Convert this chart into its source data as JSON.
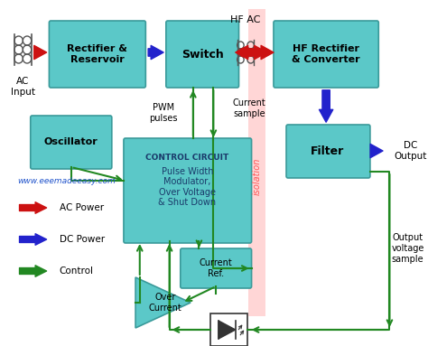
{
  "background_color": "#ffffff",
  "box_color": "#5bc8c8",
  "box_edge_color": "#3a9a9a",
  "control_text_color": "#1a3a6a",
  "website": "www.eeemadeeasy.com",
  "website_color": "#2255cc",
  "isolation_color": "#ffcccc",
  "isolation_text_color": "#ff5555",
  "ac_arrow_color": "#cc1111",
  "dc_arrow_color": "#2222cc",
  "control_arrow_color": "#228822",
  "legend": [
    {
      "label": "AC Power",
      "color": "#cc1111"
    },
    {
      "label": "DC Power",
      "color": "#2222cc"
    },
    {
      "label": "Control",
      "color": "#228822"
    }
  ]
}
